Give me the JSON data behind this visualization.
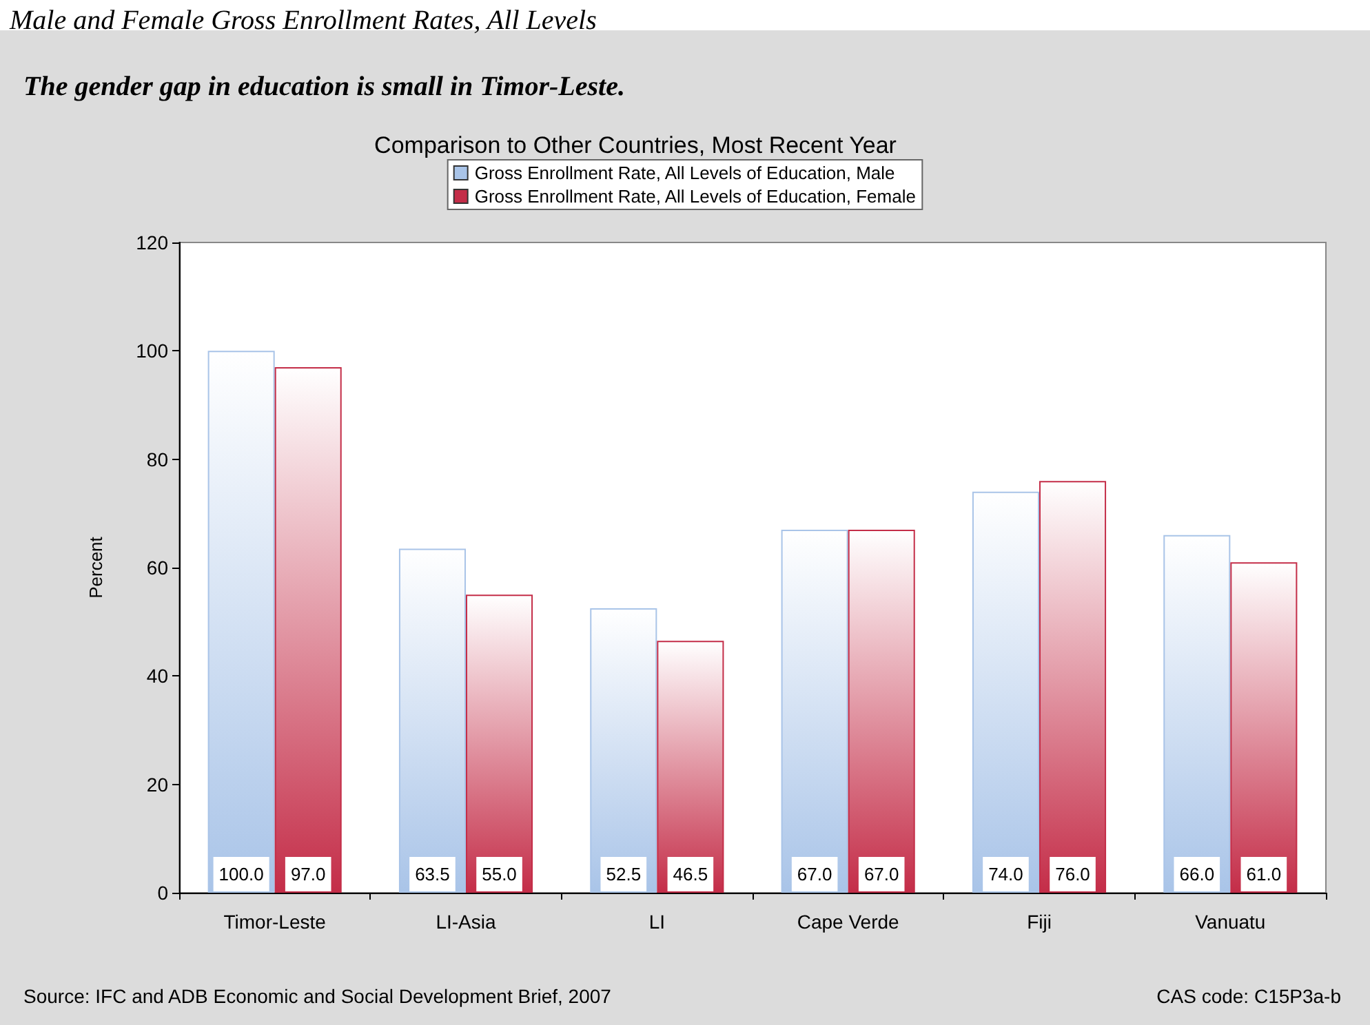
{
  "chart_data": {
    "type": "bar",
    "title": "Male and Female Gross Enrollment Rates, All Levels",
    "subtitle": "The gender gap in education is small in Timor-Leste.",
    "annotations": [
      "Comparison to Other Countries, Most Recent Year",
      "Source: IFC and ADB Economic and Social Development Brief, 2007",
      "CAS code: C15P3a-b"
    ],
    "ylabel": "Percent",
    "categories": [
      "Timor-Leste",
      "LI-Asia",
      "LI",
      "Cape Verde",
      "Fiji",
      "Vanuatu"
    ],
    "series": [
      {
        "name": "Gross Enrollment Rate, All Levels of Education, Male",
        "color": "#a9c4e8",
        "values": [
          100.0,
          63.5,
          52.5,
          67.0,
          74.0,
          66.0
        ],
        "value_labels": [
          "100.0",
          "63.5",
          "52.5",
          "67.0",
          "74.0",
          "66.0"
        ]
      },
      {
        "name": "Gross Enrollment Rate, All Levels of Education, Female",
        "color": "#c42d48",
        "values": [
          97.0,
          55.0,
          46.5,
          67.0,
          76.0,
          61.0
        ],
        "value_labels": [
          "97.0",
          "55.0",
          "46.5",
          "67.0",
          "76.0",
          "61.0"
        ]
      }
    ],
    "ylim": [
      0,
      120
    ],
    "yticks": [
      0,
      20,
      40,
      60,
      80,
      100,
      120
    ],
    "grid": false,
    "legend": "top"
  }
}
